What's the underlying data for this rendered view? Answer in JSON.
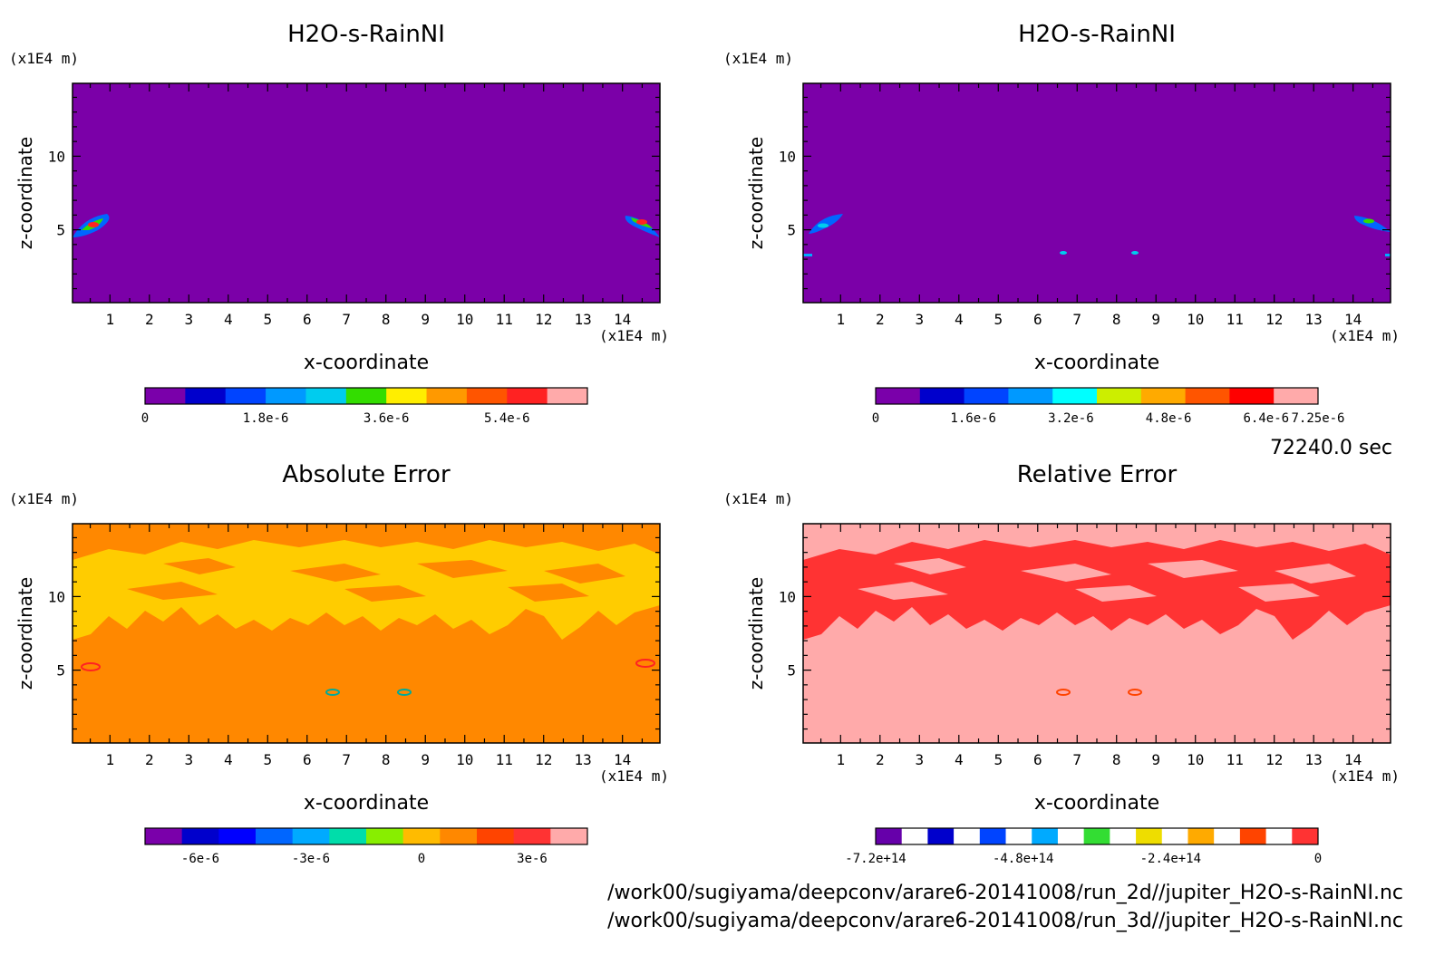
{
  "time_label": "72240.0 sec",
  "footer": {
    "paths": [
      "/work00/sugiyama/deepconv/arare6-20141008/run_2d//jupiter_H2O-s-RainNI.nc",
      "/work00/sugiyama/deepconv/arare6-20141008/run_3d//jupiter_H2O-s-RainNI.nc"
    ]
  },
  "chart_data": [
    {
      "type": "heatmap",
      "title": "H2O-s-RainNI",
      "xlabel": "x-coordinate",
      "ylabel": "z-coordinate",
      "x_unit": "(x1E4 m)",
      "y_unit": "(x1E4 m)",
      "xlim": [
        0.05,
        14.95
      ],
      "ylim": [
        0.05,
        14.95
      ],
      "x_ticks": [
        1,
        2,
        3,
        4,
        5,
        6,
        7,
        8,
        9,
        10,
        11,
        12,
        13,
        14
      ],
      "y_ticks": [
        5,
        10
      ],
      "colorbar": {
        "colors": [
          "#7a00aa",
          "#0000cc",
          "#0044ff",
          "#0099ff",
          "#00ccee",
          "#33dd00",
          "#ffee00",
          "#ff9900",
          "#ff5500",
          "#ff2222",
          "#ffaaaa"
        ],
        "labels": [
          "0",
          "1.8e-6",
          "3.6e-6",
          "5.4e-6"
        ],
        "label_positions": [
          0,
          3,
          6,
          9
        ],
        "label_range": [
          0,
          11
        ]
      },
      "background": "#7b00a8"
    },
    {
      "type": "heatmap",
      "title": "H2O-s-RainNI",
      "xlabel": "x-coordinate",
      "ylabel": "z-coordinate",
      "x_unit": "(x1E4 m)",
      "y_unit": "(x1E4 m)",
      "xlim": [
        0.05,
        14.95
      ],
      "ylim": [
        0.05,
        14.95
      ],
      "x_ticks": [
        1,
        2,
        3,
        4,
        5,
        6,
        7,
        8,
        9,
        10,
        11,
        12,
        13,
        14
      ],
      "y_ticks": [
        5,
        10
      ],
      "colorbar": {
        "colors": [
          "#7a00aa",
          "#0000cc",
          "#0044ff",
          "#0099ff",
          "#00ffff",
          "#ccee00",
          "#ffaa00",
          "#ff5500",
          "#ff0000",
          "#ffaaaa"
        ],
        "labels": [
          "0",
          "1.6e-6",
          "3.2e-6",
          "4.8e-6",
          "6.4e-6",
          "7.25e-6"
        ],
        "label_positions": [
          0,
          1.6,
          3.2,
          4.8,
          6.4,
          7.25
        ],
        "label_range": [
          0,
          7.25
        ]
      },
      "background": "#7b00a8"
    },
    {
      "type": "heatmap",
      "title": "Absolute Error",
      "xlabel": "x-coordinate",
      "ylabel": "z-coordinate",
      "x_unit": "(x1E4 m)",
      "y_unit": "(x1E4 m)",
      "xlim": [
        0.05,
        14.95
      ],
      "ylim": [
        0.05,
        14.95
      ],
      "x_ticks": [
        1,
        2,
        3,
        4,
        5,
        6,
        7,
        8,
        9,
        10,
        11,
        12,
        13,
        14
      ],
      "y_ticks": [
        5,
        10
      ],
      "colorbar": {
        "colors": [
          "#7a00aa",
          "#0000cc",
          "#0000ff",
          "#0066ff",
          "#00aaff",
          "#00ddaa",
          "#88ee00",
          "#ffbb00",
          "#ff8800",
          "#ff4400",
          "#ff3333",
          "#ffaaaa"
        ],
        "labels": [
          "-6e-6",
          "-3e-6",
          "0",
          "3e-6"
        ],
        "label_positions": [
          -6,
          -3,
          0,
          3
        ],
        "label_range": [
          -7.5,
          4.5
        ]
      },
      "background": "#ff8800"
    },
    {
      "type": "heatmap",
      "title": "Relative Error",
      "xlabel": "x-coordinate",
      "ylabel": "z-coordinate",
      "x_unit": "(x1E4 m)",
      "y_unit": "(x1E4 m)",
      "xlim": [
        0.05,
        14.95
      ],
      "ylim": [
        0.05,
        14.95
      ],
      "x_ticks": [
        1,
        2,
        3,
        4,
        5,
        6,
        7,
        8,
        9,
        10,
        11,
        12,
        13,
        14
      ],
      "y_ticks": [
        5,
        10
      ],
      "colorbar": {
        "colors": [
          "#6600aa",
          "#ffffff",
          "#0000cc",
          "#ffffff",
          "#0044ff",
          "#ffffff",
          "#00aaff",
          "#ffffff",
          "#33dd33",
          "#ffffff",
          "#eedd00",
          "#ffffff",
          "#ffaa00",
          "#ffffff",
          "#ff4400",
          "#ffffff",
          "#ff3333"
        ],
        "labels": [
          "-7.2e+14",
          "-4.8e+14",
          "-2.4e+14",
          "0"
        ],
        "label_positions": [
          -7.2,
          -4.8,
          -2.4,
          0
        ],
        "label_range": [
          -7.2,
          0
        ]
      },
      "background": "#ffaaaa"
    }
  ]
}
